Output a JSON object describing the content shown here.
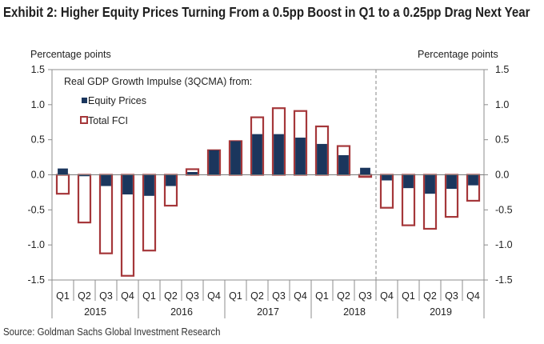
{
  "header": {
    "title": "Exhibit 2: Higher Equity Prices Turning From a 0.5pp Boost in Q1 to a 0.25pp Drag Next Year",
    "left_axis_unit": "Percentage points",
    "right_axis_unit": "Percentage points"
  },
  "footer": {
    "source": "Source: Goldman Sachs Global Investment Research"
  },
  "colors": {
    "equity": "#1b365d",
    "total_fci": "#a5373a",
    "axis": "#8c8c8c",
    "divider": "#9a9a9a"
  },
  "chart_data": {
    "type": "bar",
    "title": "Exhibit 2: Higher Equity Prices Turning From a 0.5pp Boost in Q1 to a 0.25pp Drag Next Year",
    "legend_title": "Real GDP Growth Impulse (3QCMA) from:",
    "legend_position": "top-left",
    "xlabel": "",
    "ylabel": "Percentage points",
    "ylabel_right": "Percentage points",
    "ylim": [
      -1.5,
      1.5
    ],
    "yticks": [
      "1.5",
      "1.0",
      "0.5",
      "0.0",
      "-0.5",
      "-1.0",
      "-1.5"
    ],
    "ytick_values": [
      1.5,
      1.0,
      0.5,
      0.0,
      -0.5,
      -1.0,
      -1.5
    ],
    "grid": false,
    "categories": [
      "Q1",
      "Q2",
      "Q3",
      "Q4",
      "Q1",
      "Q2",
      "Q3",
      "Q4",
      "Q1",
      "Q2",
      "Q3",
      "Q4",
      "Q1",
      "Q2",
      "Q3",
      "Q4",
      "Q1",
      "Q2",
      "Q3",
      "Q4"
    ],
    "years": [
      {
        "label": "2015",
        "quarters": 4
      },
      {
        "label": "2016",
        "quarters": 4
      },
      {
        "label": "2017",
        "quarters": 4
      },
      {
        "label": "2018",
        "quarters": 4
      },
      {
        "label": "2019",
        "quarters": 4
      }
    ],
    "forecast_divider_after_index": 14,
    "series": [
      {
        "name": "Total FCI",
        "style": "outline",
        "values": [
          -0.27,
          -0.68,
          -1.12,
          -1.44,
          -1.08,
          -0.44,
          0.08,
          0.35,
          0.48,
          0.82,
          0.95,
          0.91,
          0.69,
          0.41,
          -0.03,
          -0.47,
          -0.72,
          -0.77,
          -0.6,
          -0.37
        ]
      },
      {
        "name": "Equity Prices",
        "style": "filled",
        "values": [
          0.09,
          -0.02,
          -0.16,
          -0.28,
          -0.3,
          -0.16,
          0.04,
          0.35,
          0.48,
          0.58,
          0.58,
          0.53,
          0.44,
          0.28,
          0.1,
          -0.08,
          -0.19,
          -0.27,
          -0.2,
          -0.15
        ]
      }
    ]
  }
}
